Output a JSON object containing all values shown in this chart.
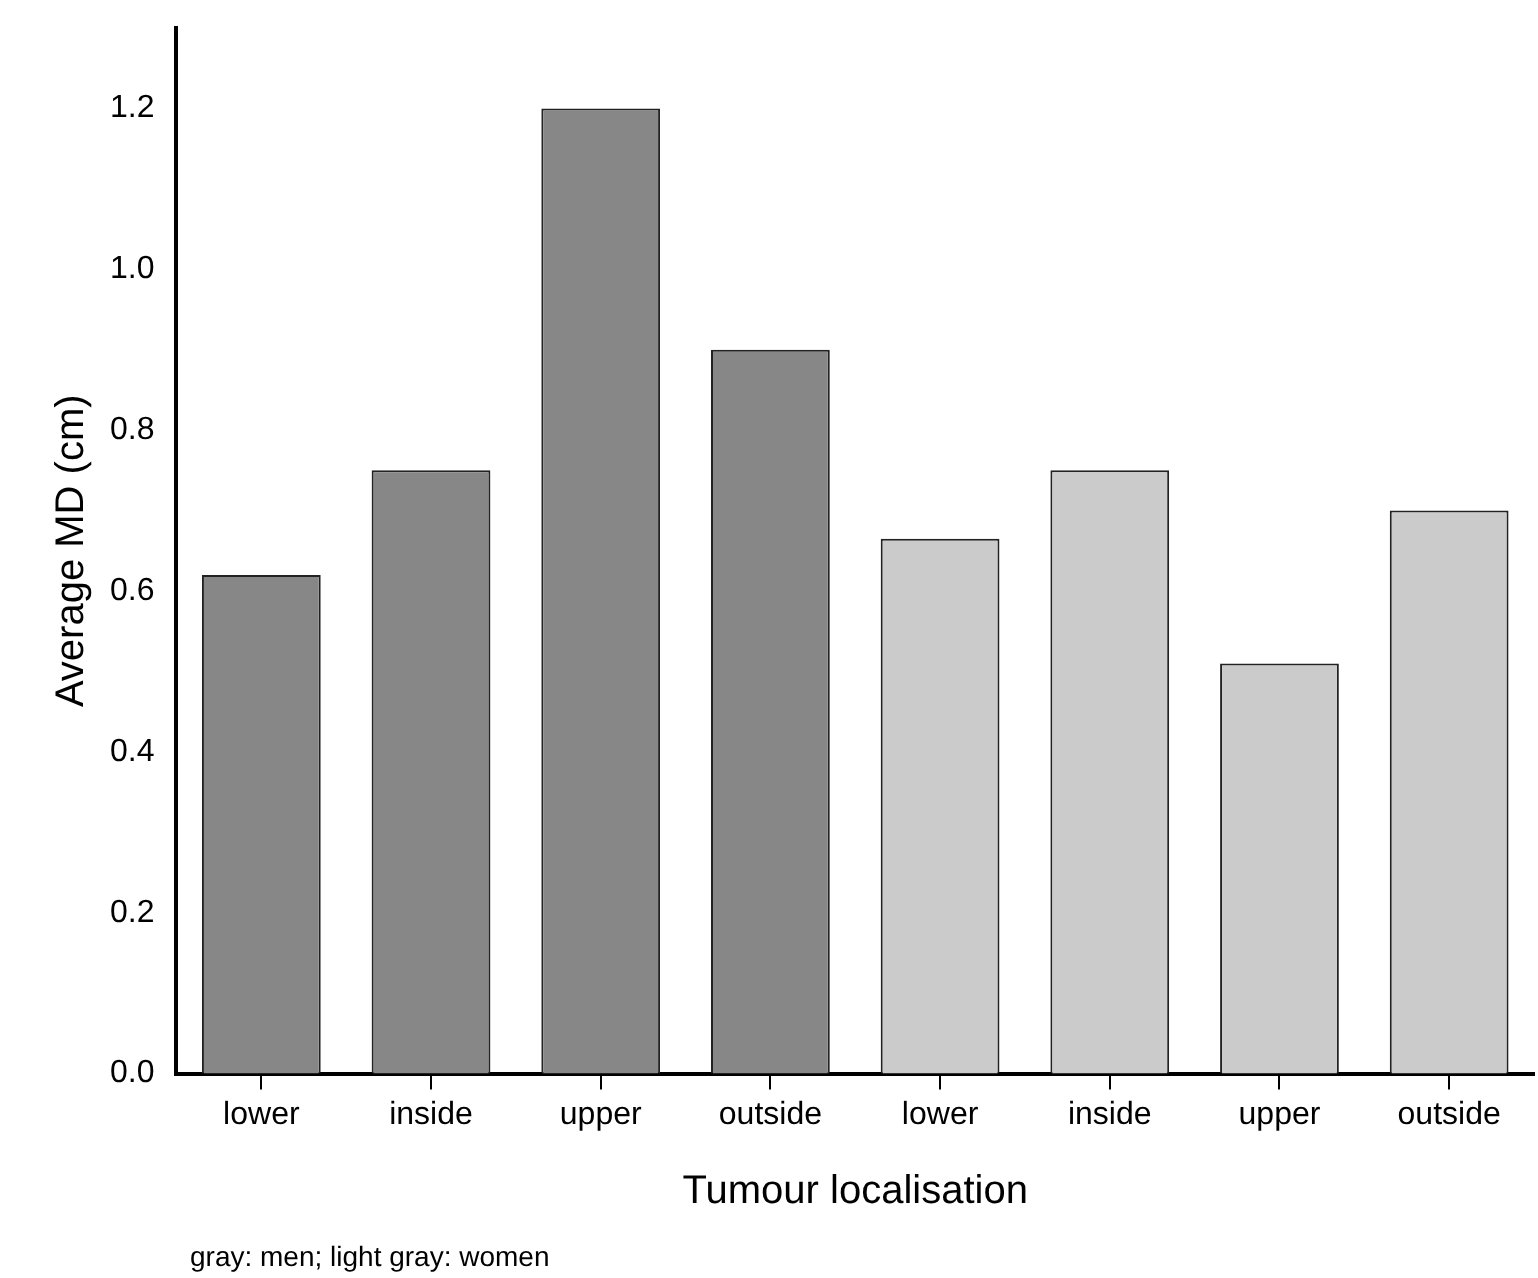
{
  "chart_data": {
    "type": "bar",
    "xlabel": "Tumour localisation",
    "ylabel": "Average MD (cm)",
    "categories": [
      "lower",
      "inside",
      "upper",
      "outside",
      "lower",
      "inside",
      "upper",
      "outside"
    ],
    "values": [
      0.62,
      0.75,
      1.2,
      0.9,
      0.665,
      0.75,
      0.51,
      0.7
    ],
    "colors": [
      "#878787",
      "#878787",
      "#878787",
      "#878787",
      "#cbcbcb",
      "#cbcbcb",
      "#cbcbcb",
      "#cbcbcb"
    ],
    "ylim": [
      0,
      1.3
    ],
    "yticks": [
      {
        "value": 0,
        "label": "0.0"
      },
      {
        "value": 0.2,
        "label": "0.2"
      },
      {
        "value": 0.4,
        "label": "0.4"
      },
      {
        "value": 0.6,
        "label": "0.6"
      },
      {
        "value": 0.8,
        "label": "0.8"
      },
      {
        "value": 1,
        "label": "1.0"
      },
      {
        "value": 1.2,
        "label": "1.2"
      }
    ],
    "grid": false,
    "legend": false,
    "annotations": [
      "gray: men; light gray: women"
    ]
  }
}
